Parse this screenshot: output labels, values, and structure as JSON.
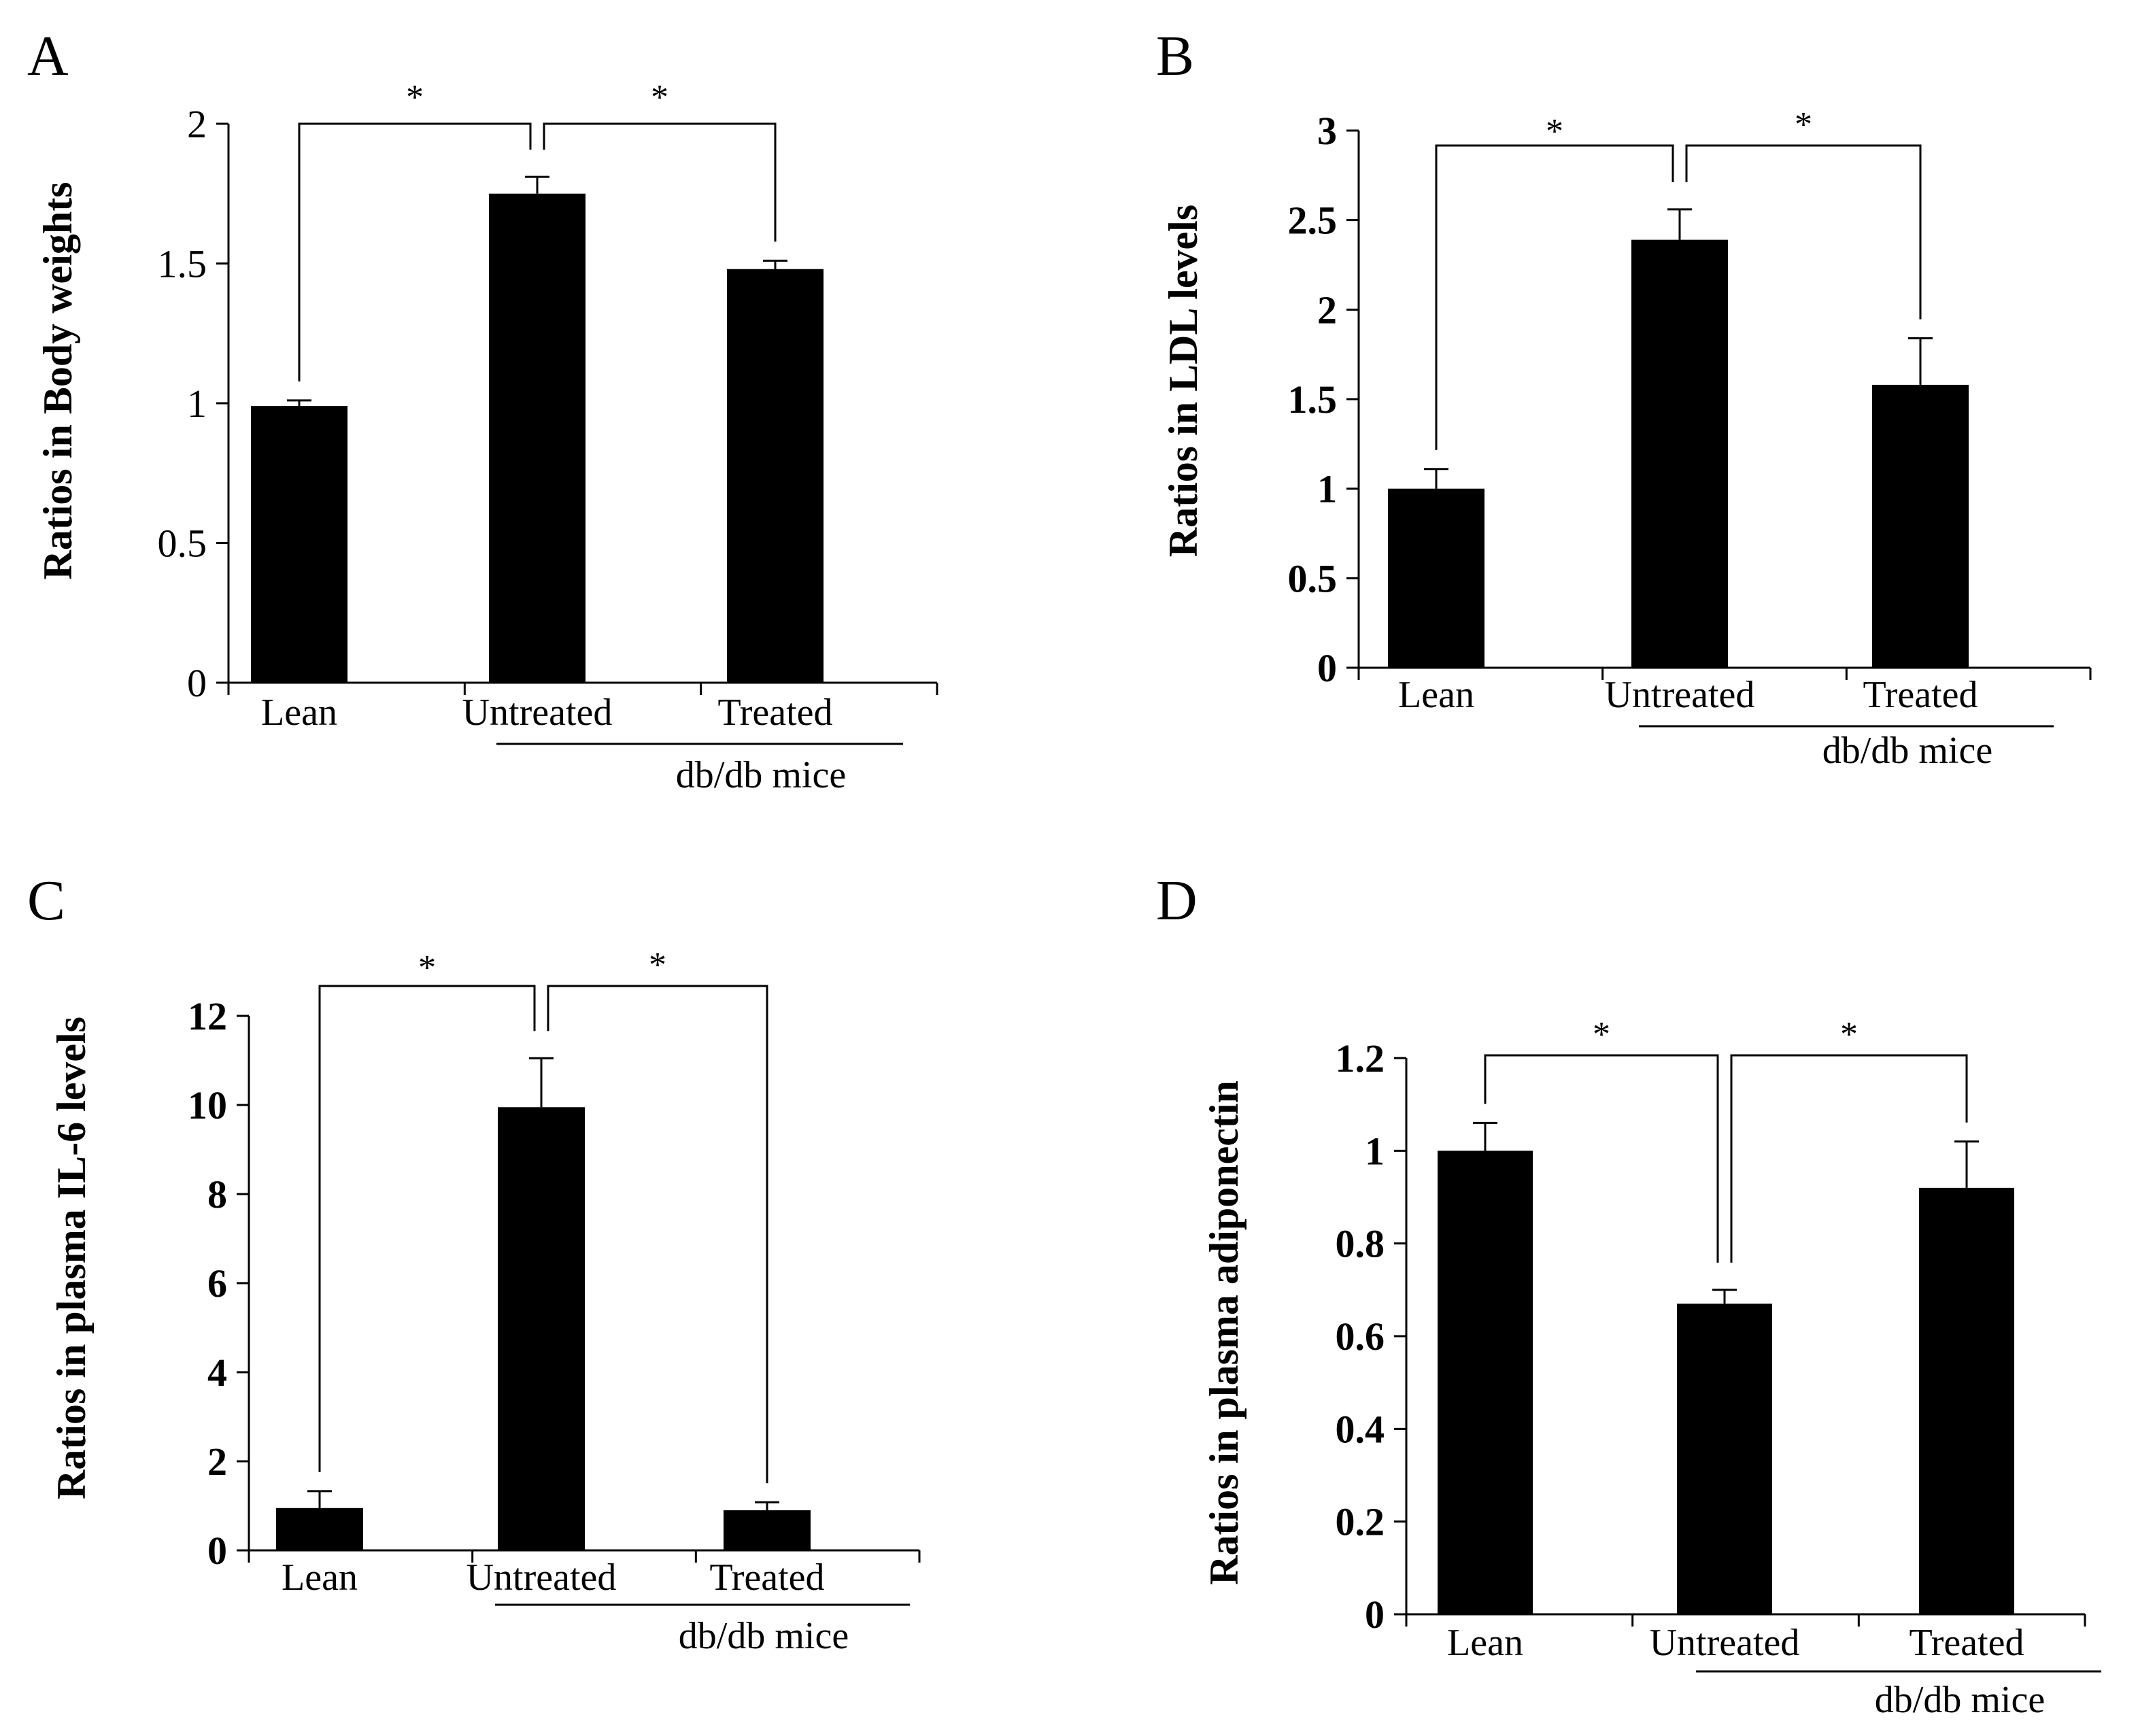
{
  "chart_data": [
    {
      "type": "bar",
      "panel": "A",
      "ylabel": "Ratios in Body weights",
      "yticks": [
        "0",
        "0.5",
        "1",
        "1.5",
        "2"
      ],
      "ylim": [
        0,
        2
      ],
      "categories": [
        "Lean",
        "Untreated",
        "Treated"
      ],
      "group_label": "db/db mice",
      "values": [
        0.99,
        1.75,
        1.48
      ],
      "errors": [
        0.02,
        0.06,
        0.03
      ],
      "significance": [
        "*",
        "*"
      ]
    },
    {
      "type": "bar",
      "panel": "B",
      "ylabel": "Ratios in  LDL levels",
      "yticks": [
        "0",
        "0.5",
        "1",
        "1.5",
        "2",
        "2.5",
        "3"
      ],
      "ylim": [
        0,
        3
      ],
      "categories": [
        "Lean",
        "Untreated",
        "Treated"
      ],
      "group_label": "db/db mice",
      "values": [
        1.0,
        2.39,
        1.58
      ],
      "errors": [
        0.11,
        0.17,
        0.26
      ],
      "significance": [
        "*",
        "*"
      ]
    },
    {
      "type": "bar",
      "panel": "C",
      "ylabel": "Ratios in plasma IL-6 levels",
      "yticks": [
        "0",
        "2",
        "4",
        "6",
        "8",
        "10",
        "12"
      ],
      "ylim": [
        0,
        12
      ],
      "categories": [
        "Lean",
        "Untreated",
        "Treated"
      ],
      "group_label": "db/db mice",
      "values": [
        0.95,
        9.95,
        0.9
      ],
      "errors": [
        0.38,
        1.1,
        0.18
      ],
      "significance": [
        "*",
        "*"
      ]
    },
    {
      "type": "bar",
      "panel": "D",
      "ylabel": "Ratios in plasma adiponectin",
      "yticks": [
        "0",
        "0.2",
        "0.4",
        "0.6",
        "0.8",
        "1",
        "1.2"
      ],
      "ylim": [
        0,
        1.2
      ],
      "categories": [
        "Lean",
        "Untreated",
        "Treated"
      ],
      "group_label": "db/db mice",
      "values": [
        1.0,
        0.67,
        0.92
      ],
      "errors": [
        0.06,
        0.03,
        0.1
      ],
      "significance": [
        "*",
        "*"
      ]
    }
  ]
}
